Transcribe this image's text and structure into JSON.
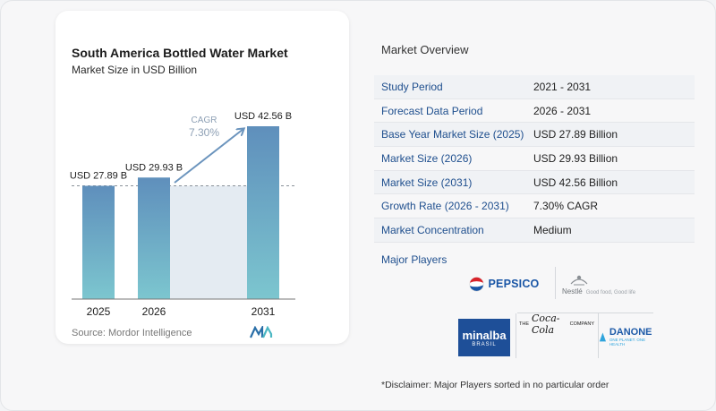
{
  "chart_data": {
    "type": "bar",
    "title": "South America Bottled Water Market",
    "subtitle": "Market Size in USD Billion",
    "categories": [
      "2025",
      "2026",
      "2031"
    ],
    "values": [
      27.89,
      29.93,
      42.56
    ],
    "value_labels": [
      "USD 27.89 B",
      "USD 29.93 B",
      "USD 42.56 B"
    ],
    "cagr_label": "CAGR",
    "cagr_value": "7.30%",
    "reference_line": 27.89,
    "ylim": [
      0,
      42.56
    ],
    "colors": {
      "bar_top": "#5f8fbc",
      "bar_bottom": "#7cc6cf",
      "band": "#e4ebf2",
      "arrow": "#6b94bd",
      "cagr": "#8ea0b5"
    }
  },
  "source": "Source:  Mordor Intelligence",
  "overview": {
    "title": "Market Overview",
    "rows": [
      {
        "label": "Study Period",
        "value": "2021 - 2031"
      },
      {
        "label": "Forecast Data Period",
        "value": "2026 - 2031"
      },
      {
        "label": "Base Year Market Size (2025)",
        "value": "USD 27.89 Billion"
      },
      {
        "label": "Market Size (2026)",
        "value": "USD 29.93 Billion"
      },
      {
        "label": "Market Size (2031)",
        "value": "USD 42.56 Billion"
      },
      {
        "label": "Growth Rate (2026 - 2031)",
        "value": "7.30% CAGR"
      },
      {
        "label": "Market Concentration",
        "value": "Medium"
      }
    ]
  },
  "players": {
    "title": "Major Players",
    "logos": {
      "pepsico": "PEPSICO",
      "nestle": "Nestlé",
      "nestle_tagline": "Good food, Good life",
      "minalba": "minalba",
      "minalba_sub": "BRASIL",
      "coca_the": "THE",
      "coca_script": "Coca-Cola",
      "coca_company": "COMPANY",
      "danone": "DANONE",
      "danone_tagline": "ONE PLANET. ONE HEALTH"
    }
  },
  "disclaimer": "*Disclaimer: Major Players sorted in no particular order"
}
